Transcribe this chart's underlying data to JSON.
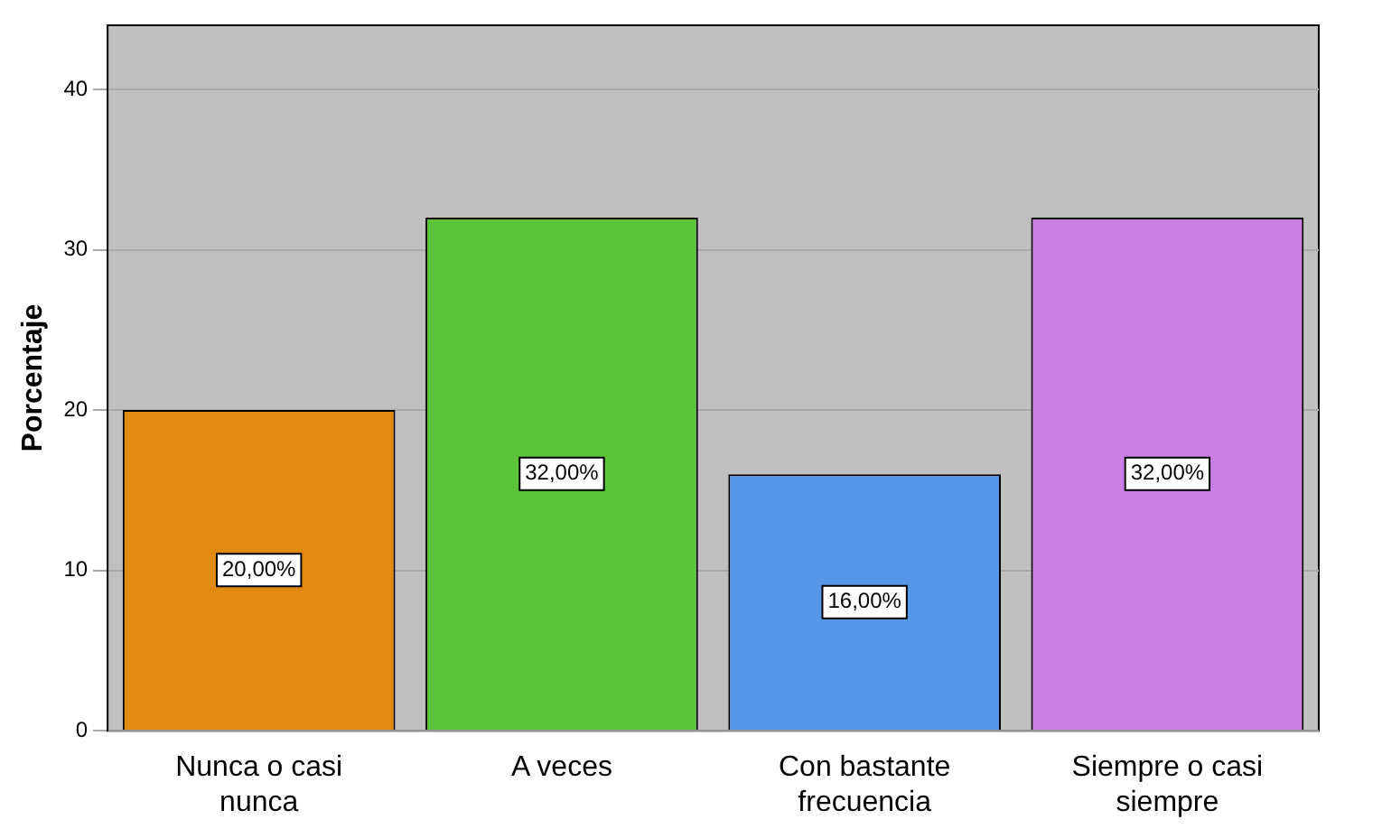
{
  "chart_data": {
    "type": "bar",
    "ylabel": "Porcentaje",
    "categories": [
      "Nunca o casi nunca",
      "A veces",
      "Con bastante frecuencia",
      "Siempre o casi siempre"
    ],
    "values": [
      20,
      32,
      16,
      32
    ],
    "colors": [
      "#e08a10",
      "#5cc43a",
      "#5597e6",
      "#c97fe3"
    ],
    "value_labels": [
      "20,00%",
      "32,00%",
      "16,00%",
      "32,00%"
    ],
    "ylim": [
      0,
      44
    ],
    "yticks": [
      0,
      10,
      20,
      30,
      40
    ],
    "grid": "y",
    "legend": false
  }
}
